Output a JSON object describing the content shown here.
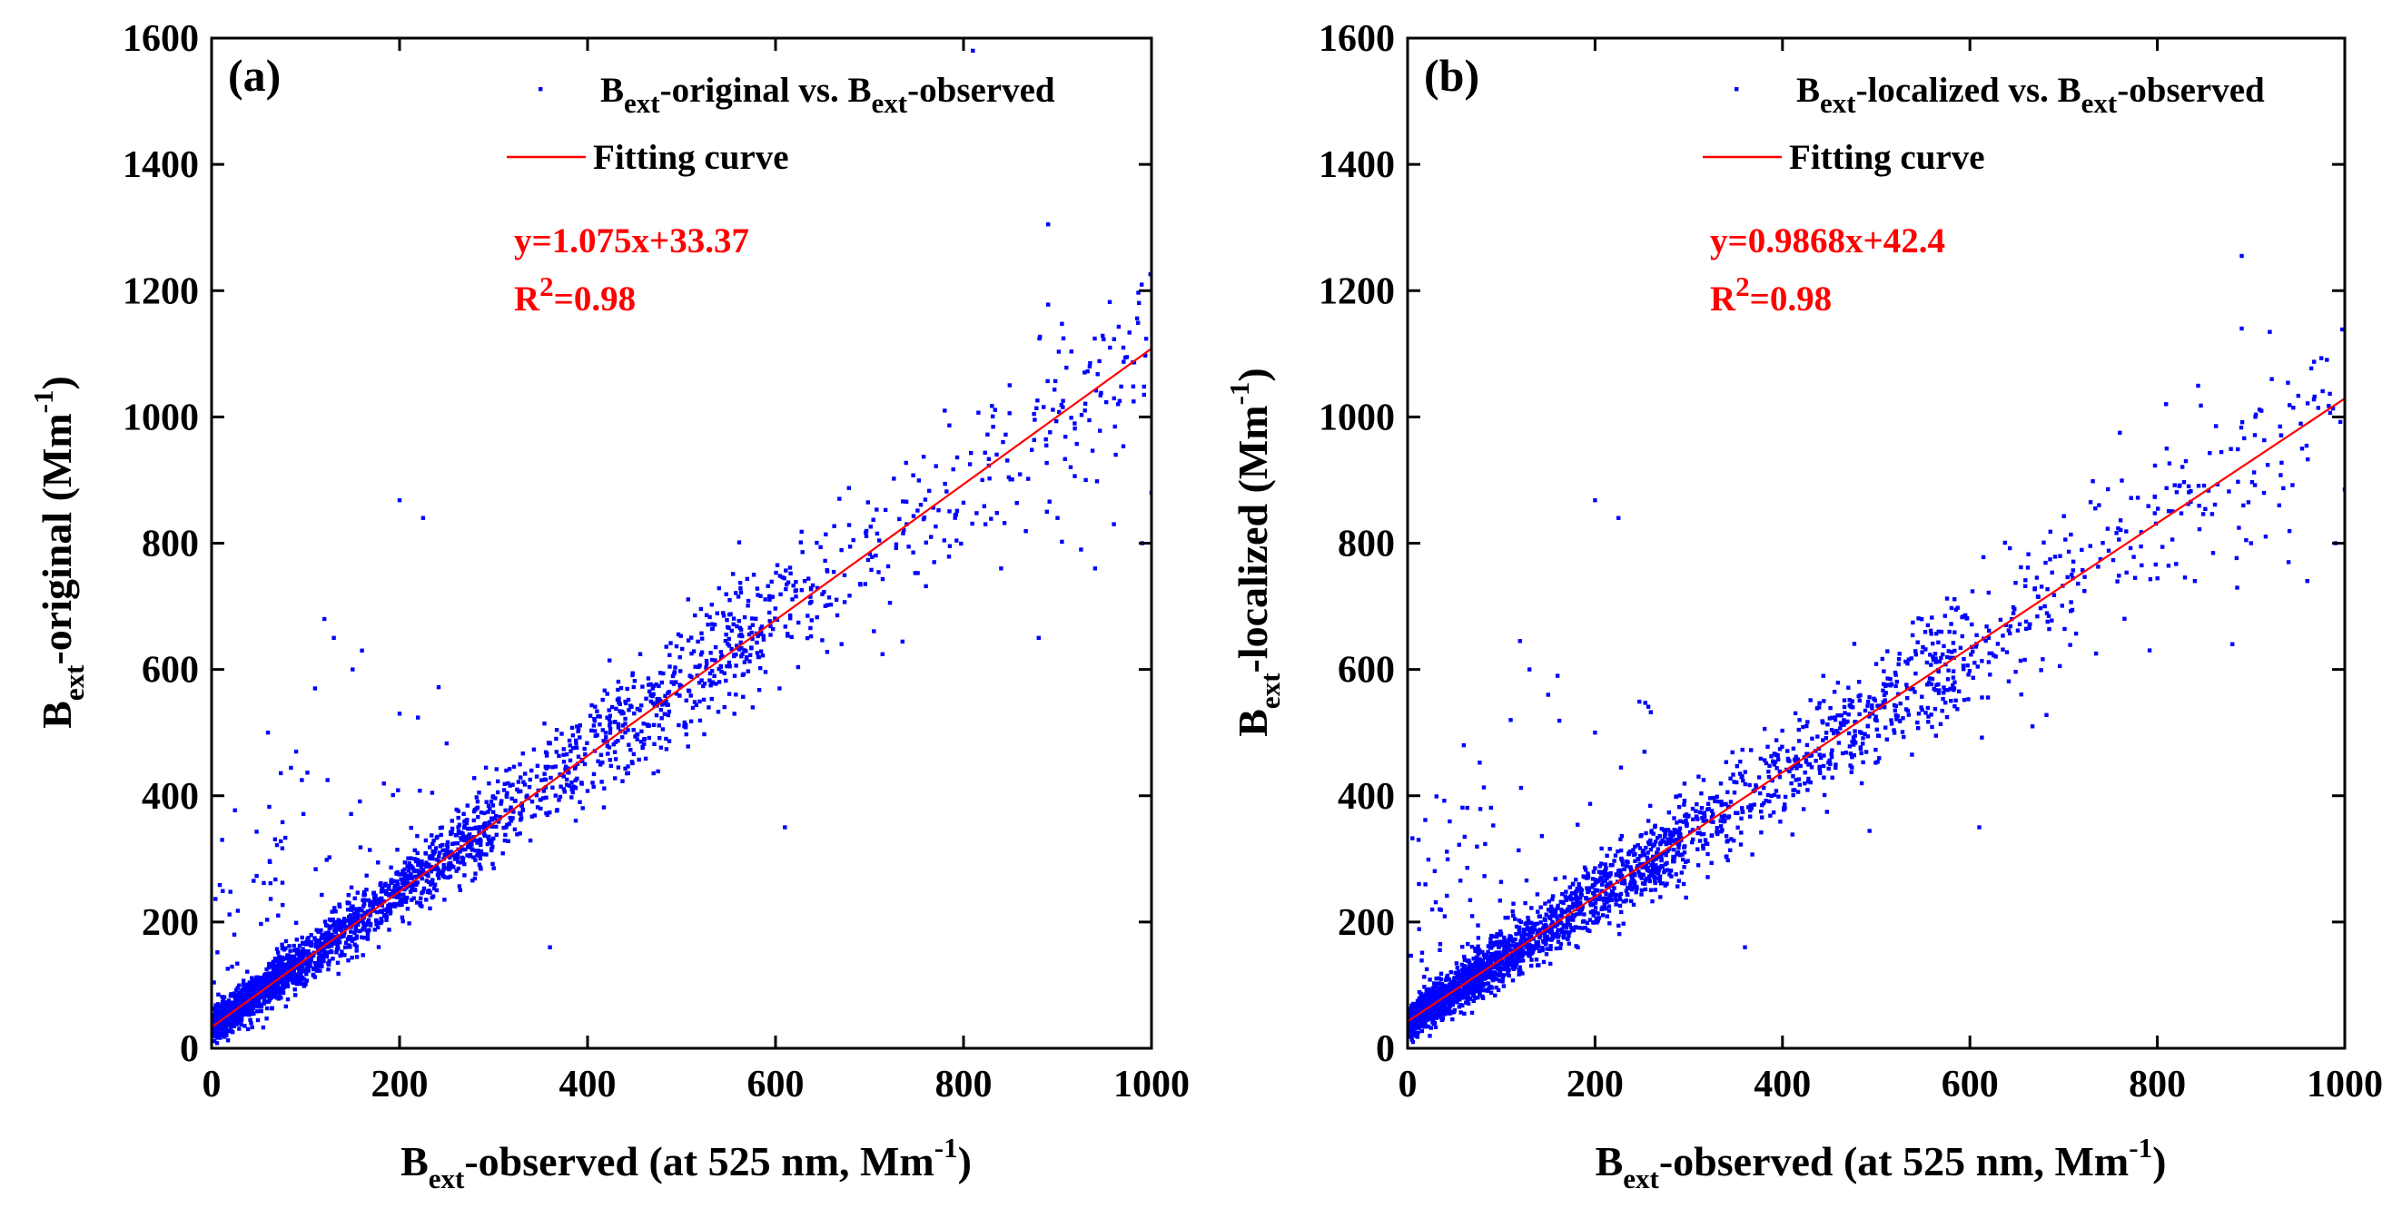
{
  "chart_data": [
    {
      "type": "scatter",
      "panel_label": "(a)",
      "title": "",
      "xlabel": {
        "base": "B",
        "sub": "ext",
        "rest": "-observed (at 525 nm, Mm",
        "sup": "-1",
        "close": ")"
      },
      "ylabel": {
        "base": "B",
        "sub": "ext",
        "rest": "-original (Mm",
        "sup": "-1",
        "close": ")"
      },
      "xlim": [
        0,
        1000
      ],
      "ylim": [
        0,
        1600
      ],
      "xticks": [
        0,
        200,
        400,
        600,
        800,
        1000
      ],
      "yticks": [
        0,
        200,
        400,
        600,
        800,
        1000,
        1200,
        1400,
        1600
      ],
      "legend": {
        "position": "top-right",
        "scatter_entry": {
          "b1": "B",
          "s1": "ext",
          "mid": "-original vs. B",
          "s2": "ext",
          "end": "-observed"
        },
        "line_entry": "Fitting curve"
      },
      "fit": {
        "slope": 1.075,
        "intercept": 33.37
      },
      "annotations": {
        "equation": "y=1.075x+33.37",
        "r2_prefix": "R",
        "r2_sup": "2",
        "r2_value": "=0.98"
      },
      "colors": {
        "points": "#0000ff",
        "fit_line": "#ff0000"
      },
      "scatter": {
        "n_points": 3000,
        "seed": 11,
        "outliers": [
          [
            810,
            1580
          ],
          [
            890,
            1305
          ],
          [
            890,
            1178
          ],
          [
            200,
            868
          ],
          [
            225,
            840
          ],
          [
            120,
            680
          ],
          [
            130,
            650
          ],
          [
            160,
            630
          ],
          [
            150,
            600
          ],
          [
            110,
            570
          ],
          [
            1000,
            880
          ],
          [
            990,
            800
          ],
          [
            960,
            830
          ],
          [
            930,
            900
          ],
          [
            925,
            790
          ],
          [
            840,
            760
          ],
          [
            610,
            350
          ],
          [
            360,
            160
          ],
          [
            200,
            530
          ],
          [
            60,
            500
          ],
          [
            90,
            470
          ],
          [
            820,
            900
          ],
          [
            780,
            1010
          ],
          [
            880,
            650
          ],
          [
            900,
            840
          ],
          [
            940,
            760
          ]
        ]
      }
    },
    {
      "type": "scatter",
      "panel_label": "(b)",
      "title": "",
      "xlabel": {
        "base": "B",
        "sub": "ext",
        "rest": "-observed (at 525 nm, Mm",
        "sup": "-1",
        "close": ")"
      },
      "ylabel": {
        "base": "B",
        "sub": "ext",
        "rest": "-localized (Mm",
        "sup": "-1",
        "close": ")"
      },
      "xlim": [
        0,
        1000
      ],
      "ylim": [
        0,
        1600
      ],
      "xticks": [
        0,
        200,
        400,
        600,
        800,
        1000
      ],
      "yticks": [
        0,
        200,
        400,
        600,
        800,
        1000,
        1200,
        1400,
        1600
      ],
      "legend": {
        "position": "top-right",
        "scatter_entry": {
          "b1": "B",
          "s1": "ext",
          "mid": "-localized vs. B",
          "s2": "ext",
          "end": "-observed"
        },
        "line_entry": "Fitting curve"
      },
      "fit": {
        "slope": 0.9868,
        "intercept": 42.4
      },
      "annotations": {
        "equation": "y=0.9868x+42.4",
        "r2_prefix": "R",
        "r2_sup": "2",
        "r2_value": "=0.98"
      },
      "colors": {
        "points": "#0000ff",
        "fit_line": "#ff0000"
      },
      "scatter": {
        "n_points": 3000,
        "seed": 23,
        "outliers": [
          [
            890,
            1255
          ],
          [
            890,
            1140
          ],
          [
            200,
            868
          ],
          [
            225,
            840
          ],
          [
            120,
            645
          ],
          [
            130,
            600
          ],
          [
            160,
            590
          ],
          [
            150,
            560
          ],
          [
            110,
            520
          ],
          [
            1000,
            885
          ],
          [
            990,
            800
          ],
          [
            960,
            740
          ],
          [
            930,
            860
          ],
          [
            840,
            740
          ],
          [
            610,
            350
          ],
          [
            360,
            160
          ],
          [
            200,
            500
          ],
          [
            60,
            480
          ],
          [
            760,
            975
          ],
          [
            810,
            950
          ],
          [
            880,
            640
          ],
          [
            900,
            800
          ],
          [
            940,
            770
          ]
        ]
      }
    }
  ]
}
